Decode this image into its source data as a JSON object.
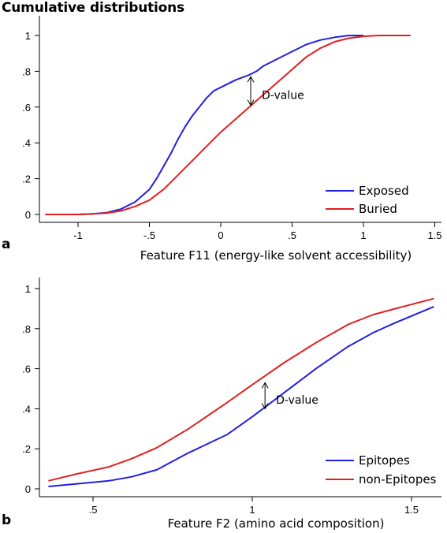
{
  "title": "Cumulative distributions",
  "chart_data": [
    {
      "type": "line",
      "panel_label": "a",
      "xlabel": "Feature F11 (energy-like solvent accessibility)",
      "ylabel": "",
      "xlim": [
        -1.25,
        1.55
      ],
      "ylim": [
        0,
        1
      ],
      "x_ticks": [
        -1,
        -0.5,
        0,
        0.5,
        1,
        1.5
      ],
      "x_tick_labels": [
        "-1",
        "-.5",
        "0",
        ".5",
        "1",
        "1.5"
      ],
      "y_ticks": [
        0,
        0.2,
        0.4,
        0.6,
        0.8,
        1
      ],
      "y_tick_labels": [
        "0",
        ".2",
        ".4",
        ".6",
        ".8",
        "1"
      ],
      "legend_position": "bottom-right",
      "annotation": {
        "text": "D-value",
        "x": 0.21,
        "y_top": 0.77,
        "y_bottom": 0.61
      },
      "series": [
        {
          "name": "Exposed",
          "color": "#2020e0",
          "x": [
            -1.23,
            -1.0,
            -0.9,
            -0.8,
            -0.7,
            -0.6,
            -0.5,
            -0.45,
            -0.4,
            -0.35,
            -0.3,
            -0.25,
            -0.2,
            -0.15,
            -0.1,
            -0.05,
            0.0,
            0.05,
            0.1,
            0.15,
            0.2,
            0.25,
            0.3,
            0.4,
            0.5,
            0.6,
            0.7,
            0.8,
            0.9,
            1.0
          ],
          "y": [
            0.0,
            0.0,
            0.003,
            0.01,
            0.03,
            0.07,
            0.14,
            0.2,
            0.27,
            0.34,
            0.42,
            0.49,
            0.55,
            0.6,
            0.65,
            0.69,
            0.71,
            0.73,
            0.75,
            0.765,
            0.78,
            0.8,
            0.83,
            0.87,
            0.91,
            0.95,
            0.975,
            0.99,
            1.0,
            1.0
          ]
        },
        {
          "name": "Buried",
          "color": "#e02020",
          "x": [
            -1.23,
            -1.0,
            -0.9,
            -0.8,
            -0.7,
            -0.6,
            -0.5,
            -0.4,
            -0.3,
            -0.2,
            -0.1,
            0.0,
            0.1,
            0.2,
            0.3,
            0.4,
            0.5,
            0.6,
            0.7,
            0.8,
            0.9,
            1.0,
            1.1,
            1.33
          ],
          "y": [
            0.0,
            0.0,
            0.003,
            0.008,
            0.02,
            0.045,
            0.08,
            0.14,
            0.22,
            0.3,
            0.38,
            0.46,
            0.53,
            0.6,
            0.67,
            0.74,
            0.81,
            0.88,
            0.93,
            0.965,
            0.985,
            0.995,
            1.0,
            1.0
          ]
        }
      ]
    },
    {
      "type": "line",
      "panel_label": "b",
      "xlabel": "Feature F2 (amino acid composition)",
      "ylabel": "",
      "xlim": [
        0.35,
        1.6
      ],
      "ylim": [
        0,
        1
      ],
      "x_ticks": [
        0.5,
        1,
        1.5
      ],
      "x_tick_labels": [
        ".5",
        "1",
        "1.5"
      ],
      "y_ticks": [
        0,
        0.2,
        0.4,
        0.6,
        0.8,
        1
      ],
      "y_tick_labels": [
        "0",
        ".2",
        ".4",
        ".6",
        ".8",
        "1"
      ],
      "legend_position": "bottom-right",
      "annotation": {
        "text": "D-value",
        "x": 1.04,
        "y_top": 0.53,
        "y_bottom": 0.4
      },
      "series": [
        {
          "name": "Epitopes",
          "color": "#2020e0",
          "x": [
            0.36,
            0.45,
            0.55,
            0.62,
            0.7,
            0.8,
            0.92,
            1.0,
            1.1,
            1.2,
            1.3,
            1.38,
            1.45,
            1.57
          ],
          "y": [
            0.012,
            0.025,
            0.04,
            0.06,
            0.095,
            0.18,
            0.27,
            0.36,
            0.48,
            0.6,
            0.71,
            0.78,
            0.83,
            0.91
          ]
        },
        {
          "name": "non-Epitopes",
          "color": "#e02020",
          "x": [
            0.36,
            0.45,
            0.55,
            0.62,
            0.7,
            0.8,
            0.92,
            1.0,
            1.1,
            1.2,
            1.3,
            1.38,
            1.45,
            1.57
          ],
          "y": [
            0.04,
            0.075,
            0.11,
            0.15,
            0.205,
            0.3,
            0.43,
            0.52,
            0.63,
            0.73,
            0.82,
            0.87,
            0.9,
            0.95
          ]
        }
      ]
    }
  ]
}
